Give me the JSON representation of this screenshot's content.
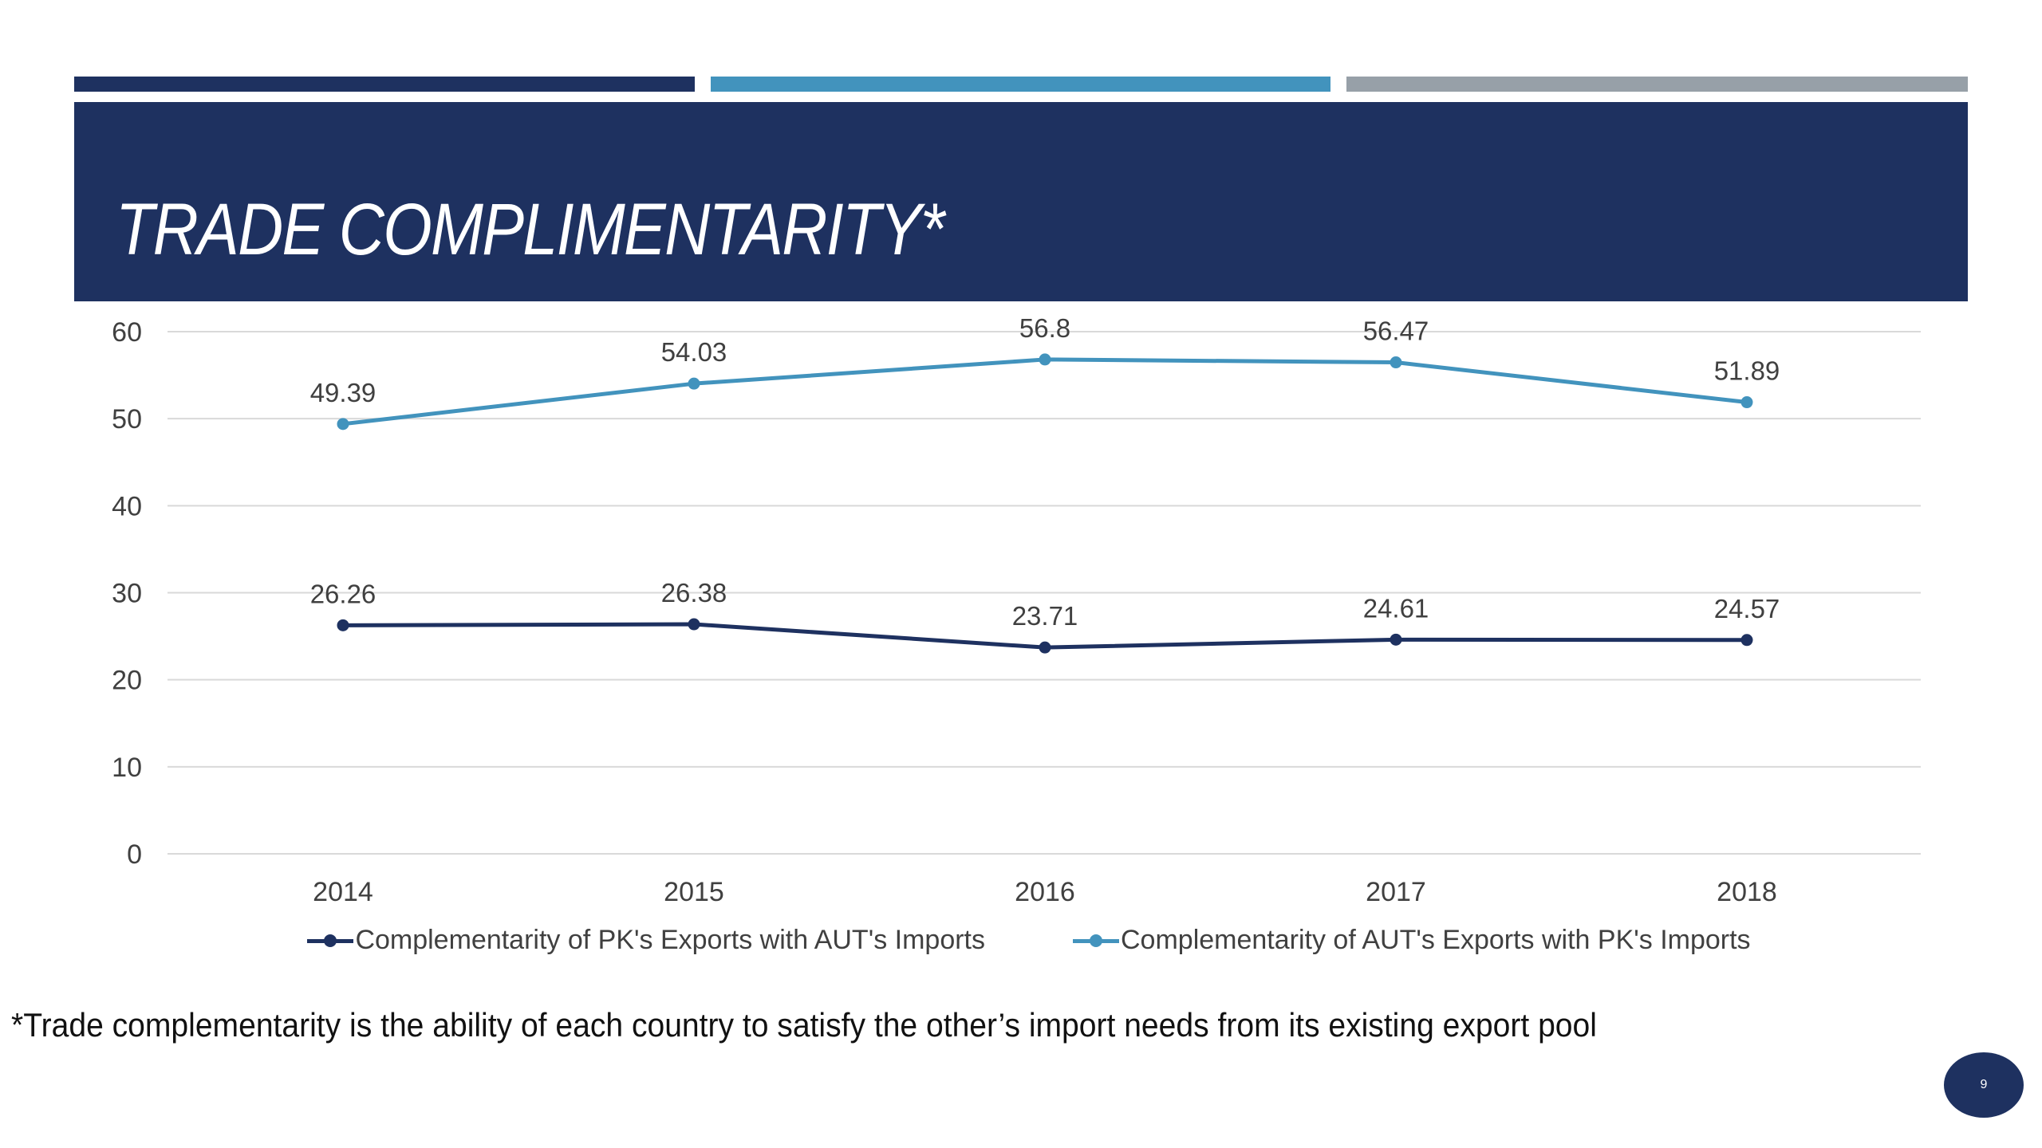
{
  "slide": {
    "title": "TRADE COMPLIMENTARITY*",
    "footnote": "*Trade complementarity is the ability of each country to satisfy the other’s import needs from its existing export pool",
    "page_number": "9",
    "accent_colors": {
      "navy": "#1e3160",
      "blue": "#4293bd",
      "gray": "#97a0a8"
    }
  },
  "chart_data": {
    "type": "line",
    "title": "",
    "xlabel": "",
    "ylabel": "",
    "categories": [
      "2014",
      "2015",
      "2016",
      "2017",
      "2018"
    ],
    "ylim": [
      0,
      60
    ],
    "yticks": [
      0,
      10,
      20,
      30,
      40,
      50,
      60
    ],
    "ytick_labels": [
      "0",
      "10",
      "20",
      "30",
      "40",
      "50",
      "60"
    ],
    "grid": true,
    "legend_position": "bottom",
    "data_labels": true,
    "series": [
      {
        "name": "Complementarity of PK's Exports with AUT's Imports",
        "color": "#1e3160",
        "values": [
          26.26,
          26.38,
          23.71,
          24.61,
          24.57
        ],
        "labels": [
          "26.26",
          "26.38",
          "23.71",
          "24.61",
          "24.57"
        ]
      },
      {
        "name": "Complementarity of AUT's Exports with PK's Imports",
        "color": "#4293bd",
        "values": [
          49.39,
          54.03,
          56.8,
          56.47,
          51.89
        ],
        "labels": [
          "49.39",
          "54.03",
          "56.8",
          "56.47",
          "51.89"
        ]
      }
    ]
  }
}
